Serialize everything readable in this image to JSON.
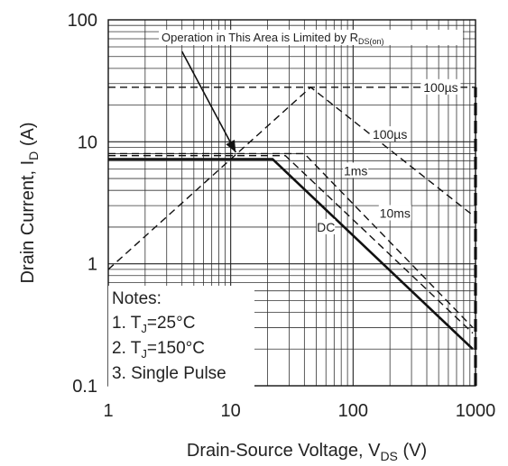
{
  "chart_data": {
    "type": "line",
    "scale": {
      "x": "log",
      "y": "log"
    },
    "xlim": [
      1,
      1000
    ],
    "ylim": [
      0.1,
      100
    ],
    "grid": true,
    "xlabel": {
      "main": "Drain-Source Voltage, V",
      "sub": "DS",
      "tail": " (V)"
    },
    "ylabel": {
      "main": "Drain Current, I",
      "sub": "D",
      "tail": " (A)"
    },
    "x_ticks": [
      {
        "value": 1,
        "label": "1"
      },
      {
        "value": 10,
        "label": "10"
      },
      {
        "value": 100,
        "label": "100"
      },
      {
        "value": 1000,
        "label": "1000"
      }
    ],
    "y_ticks": [
      {
        "value": 0.1,
        "label": "0.1"
      },
      {
        "value": 1,
        "label": "1"
      },
      {
        "value": 10,
        "label": "10"
      },
      {
        "value": 100,
        "label": "100"
      }
    ],
    "rds_limit_label": {
      "main": "Operation in This Area is Limited by R",
      "sub": "DS(on)"
    },
    "series": [
      {
        "name": "100µs",
        "style": "dashed",
        "points": [
          [
            1,
            28
          ],
          [
            1000,
            28
          ]
        ]
      },
      {
        "name": "100µs",
        "style": "dashed",
        "points": [
          [
            1,
            0.9
          ],
          [
            45,
            28
          ],
          [
            950,
            2.5
          ]
        ]
      },
      {
        "name": "1ms",
        "style": "dashed",
        "points": [
          [
            1,
            8
          ],
          [
            40,
            8
          ],
          [
            950,
            0.3
          ]
        ]
      },
      {
        "name": "10ms",
        "style": "dashed",
        "points": [
          [
            1,
            7.7
          ],
          [
            28,
            7.7
          ],
          [
            950,
            0.27
          ]
        ]
      },
      {
        "name": "DC",
        "style": "solid",
        "points": [
          [
            1,
            7.2
          ],
          [
            22,
            7.2
          ],
          [
            950,
            0.2
          ]
        ]
      },
      {
        "name": "",
        "style": "vertical-dashed",
        "points": [
          [
            1000,
            0.1
          ],
          [
            1000,
            28
          ]
        ]
      }
    ],
    "annotations": [
      {
        "text": "100µs",
        "x": 520,
        "y": 28
      },
      {
        "text": "100µs",
        "x": 200,
        "y": 11.5
      },
      {
        "text": "1ms",
        "x": 105,
        "y": 5.8
      },
      {
        "text": "10ms",
        "x": 220,
        "y": 2.6
      },
      {
        "text": "DC",
        "x": 60,
        "y": 2.0
      }
    ],
    "arrow": {
      "from": [
        4,
        55
      ],
      "to": [
        11,
        8.2
      ]
    },
    "notes": {
      "title": "Notes:",
      "item1": {
        "prefix": "1.  T",
        "sub": "J",
        "suffix": "=25°C"
      },
      "item2": {
        "prefix": "2. T",
        "sub": "J",
        "suffix": "=150°C"
      },
      "item3": "3. Single Pulse"
    }
  }
}
